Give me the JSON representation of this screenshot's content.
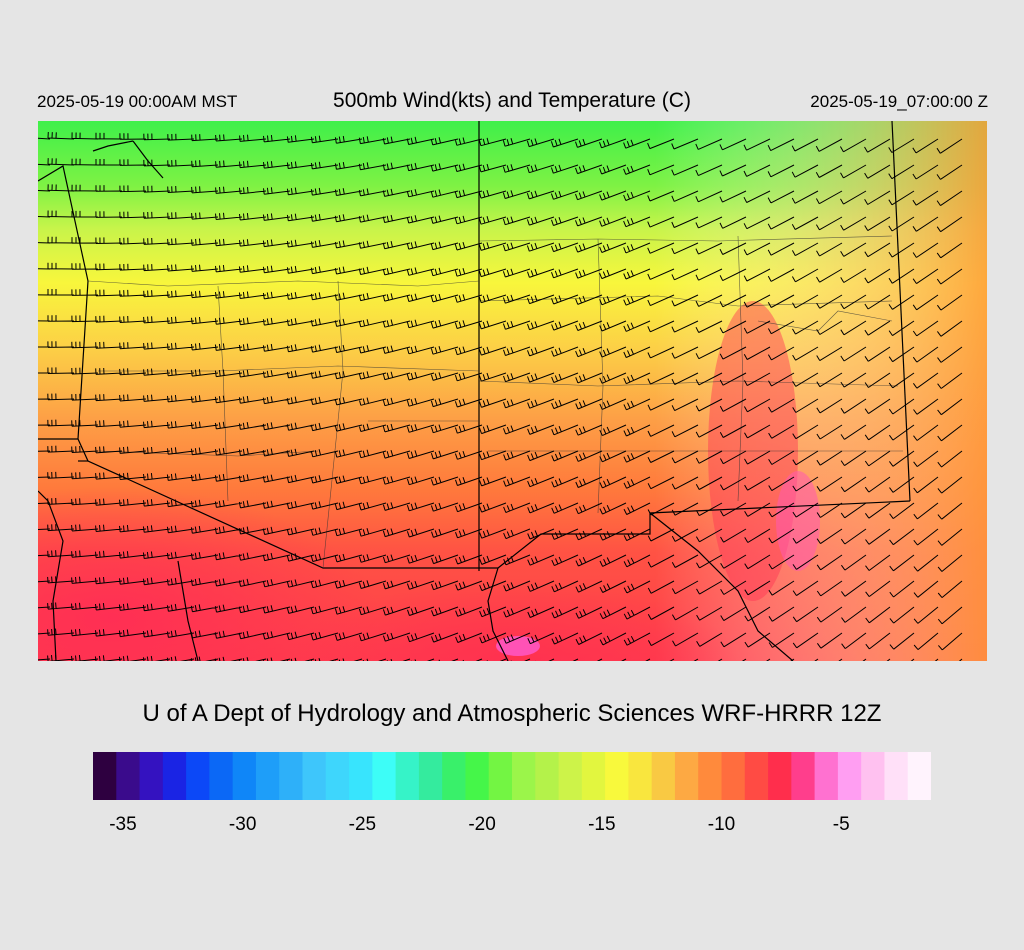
{
  "header": {
    "local_time": "2025-05-19 00:00AM MST",
    "title": "500mb Wind(kts) and Temperature (C)",
    "utc_time": "2025-05-19_07:00:00 Z"
  },
  "credit": "U of A Dept of Hydrology and Atmospheric Sciences WRF-HRRR 12Z",
  "colorbar": {
    "min": -36,
    "max": -1,
    "colors": [
      "#2e0040",
      "#3a0b8c",
      "#3412c0",
      "#1a24e4",
      "#0c48f7",
      "#0b68f6",
      "#0f86f8",
      "#1e9ef9",
      "#2eb0f9",
      "#3ec6fb",
      "#3ed6fc",
      "#38e4fd",
      "#3dfdf7",
      "#36f3c8",
      "#34eb9e",
      "#39f06a",
      "#45f649",
      "#73f543",
      "#9bf54a",
      "#b4f24a",
      "#cdf349",
      "#e2f63f",
      "#f8f93c",
      "#f9e63e",
      "#f9c943",
      "#fda943",
      "#ff8a3c",
      "#ff6d3e",
      "#ff4b44",
      "#ff2e4c",
      "#ff3e8c",
      "#ff71d0",
      "#ff9ef2",
      "#ffc1f0",
      "#ffe0f8",
      "#fff3fd"
    ],
    "tick_labels": [
      "-35",
      "-30",
      "-25",
      "-20",
      "-15",
      "-10",
      "-5"
    ],
    "tick_values": [
      -35,
      -30,
      -25,
      -20,
      -15,
      -10,
      -5
    ]
  }
}
